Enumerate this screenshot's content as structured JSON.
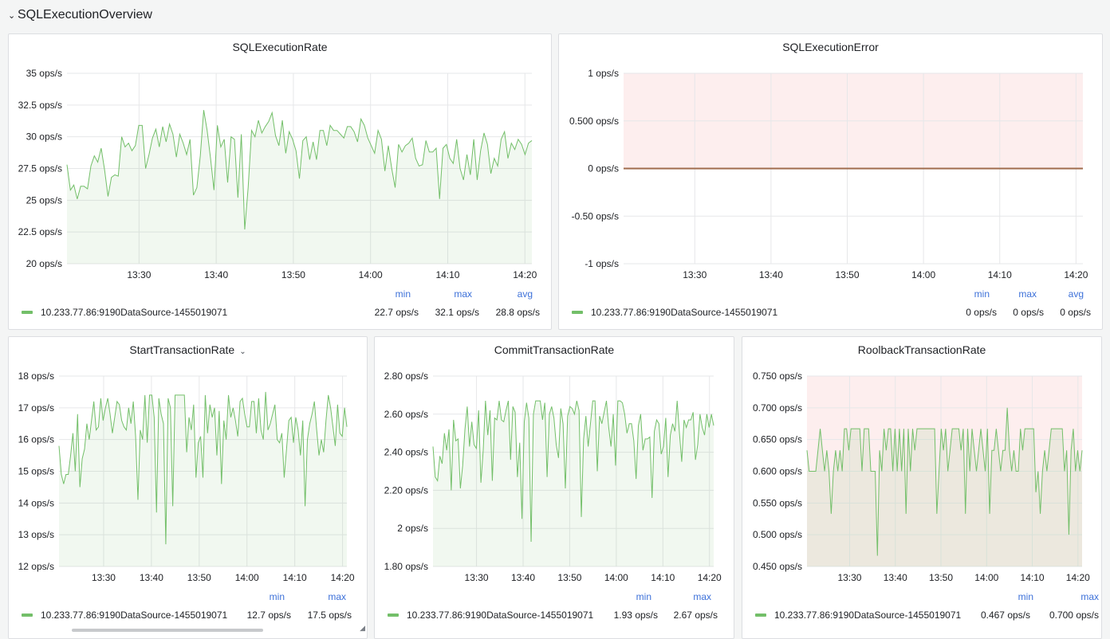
{
  "row": {
    "title": "SQLExecutionOverview",
    "chevron": "chevron-down-icon"
  },
  "legend_headers": {
    "min": "min",
    "max": "max",
    "avg": "avg"
  },
  "colors": {
    "series": "#73bf69",
    "fill": "#eef5ec",
    "threshold": "#fdeeee",
    "error_line": "#a06b4c",
    "header": "#3d71d9",
    "grid": "#e6e7e9"
  },
  "panels": [
    {
      "id": "sqlexecutionrate",
      "title": "SQLExecutionRate",
      "has_menu": false,
      "legend_series": "10.233.77.86:9190DataSource-1455019071",
      "stats": {
        "min": "22.7 ops/s",
        "max": "32.1 ops/s",
        "avg": "28.8 ops/s"
      },
      "chart_data": {
        "type": "line",
        "ylim": [
          20,
          35
        ],
        "yticks": [
          "35 ops/s",
          "32.5 ops/s",
          "30 ops/s",
          "27.5 ops/s",
          "25 ops/s",
          "22.5 ops/s",
          "20 ops/s"
        ],
        "xticks": [
          "13:30",
          "13:40",
          "13:50",
          "14:00",
          "14:10",
          "14:20"
        ],
        "threshold_area": false,
        "series": [
          {
            "name": "10.233.77.86:9190DataSource-1455019071",
            "values": [
              27.8,
              25.8,
              26.2,
              25.1,
              26.1,
              26.1,
              25.9,
              27.7,
              28.5,
              28.0,
              29.1,
              27.4,
              25.3,
              26.8,
              27.0,
              26.9,
              30.0,
              29.2,
              29.5,
              28.9,
              29.3,
              30.9,
              30.9,
              27.5,
              28.6,
              29.9,
              30.6,
              29.2,
              30.8,
              29.6,
              31.0,
              30.2,
              28.4,
              30.2,
              29.5,
              28.6,
              29.8,
              25.4,
              26.0,
              28.5,
              32.1,
              30.5,
              28.3,
              25.8,
              30.9,
              29.2,
              29.8,
              26.4,
              30.0,
              29.8,
              25.2,
              30.2,
              22.7,
              26.0,
              30.5,
              30.0,
              31.3,
              30.3,
              30.8,
              31.2,
              31.9,
              30.1,
              29.3,
              31.3,
              28.7,
              30.4,
              29.8,
              28.9,
              26.7,
              29.7,
              30.0,
              28.2,
              29.6,
              28.2,
              30.5,
              30.5,
              29.3,
              30.9,
              30.5,
              30.5,
              30.2,
              29.9,
              30.8,
              30.8,
              30.4,
              29.6,
              31.4,
              30.9,
              29.9,
              29.3,
              28.7,
              30.5,
              29.8,
              27.3,
              29.3,
              27.5,
              26.0,
              29.4,
              28.8,
              29.3,
              29.5,
              29.9,
              28.3,
              27.7,
              27.8,
              29.7,
              28.8,
              28.8,
              29.1,
              25.1,
              29.1,
              29.4,
              28.3,
              27.9,
              29.8,
              27.5,
              26.6,
              28.6,
              27.0,
              29.8,
              26.6,
              28.9,
              30.3,
              29.4,
              27.1,
              28.3,
              27.7,
              29.8,
              30.4,
              28.3,
              29.5,
              29.0,
              29.8,
              29.4,
              28.6,
              29.5,
              29.7
            ]
          }
        ]
      }
    },
    {
      "id": "sqlexecutionerror",
      "title": "SQLExecutionError",
      "has_menu": false,
      "legend_series": "10.233.77.86:9190DataSource-1455019071",
      "stats": {
        "min": "0 ops/s",
        "max": "0 ops/s",
        "avg": "0 ops/s"
      },
      "chart_data": {
        "type": "line",
        "ylim": [
          -1,
          1
        ],
        "yticks": [
          "1 ops/s",
          "0.500 ops/s",
          "0 ops/s",
          "-0.50 ops/s",
          "-1 ops/s"
        ],
        "xticks": [
          "13:30",
          "13:40",
          "13:50",
          "14:00",
          "14:10",
          "14:20"
        ],
        "threshold_area": true,
        "threshold_from": 0,
        "constant_zero": true,
        "series": [
          {
            "name": "10.233.77.86:9190DataSource-1455019071",
            "values": [
              0,
              0
            ]
          }
        ]
      }
    },
    {
      "id": "starttransactionrate",
      "title": "StartTransactionRate",
      "has_menu": true,
      "legend_series": "10.233.77.86:9190DataSource-1455019071",
      "stats": {
        "min": "12.7 ops/s",
        "max": "17.5 ops/s"
      },
      "chart_data": {
        "type": "line",
        "ylim": [
          12,
          18
        ],
        "yticks": [
          "18 ops/s",
          "17 ops/s",
          "16 ops/s",
          "15 ops/s",
          "14 ops/s",
          "13 ops/s",
          "12 ops/s"
        ],
        "xticks": [
          "13:30",
          "13:40",
          "13:50",
          "14:00",
          "14:10",
          "14:20"
        ],
        "threshold_area": false,
        "series": [
          {
            "name": "10.233.77.86:9190DataSource-1455019071",
            "values": [
              15.8,
              14.9,
              14.6,
              14.9,
              14.9,
              15.5,
              16.2,
              15.0,
              16.8,
              14.5,
              15.4,
              15.7,
              16.5,
              16.0,
              16.6,
              17.2,
              16.3,
              16.4,
              17.3,
              16.6,
              17.0,
              17.3,
              16.8,
              16.2,
              16.7,
              17.2,
              17.1,
              16.6,
              16.4,
              16.3,
              17.0,
              16.5,
              17.2,
              16.1,
              14.1,
              16.3,
              16.0,
              17.4,
              15.9,
              17.4,
              17.4,
              16.7,
              13.7,
              17.3,
              16.8,
              16.5,
              12.7,
              17.3,
              17.0,
              13.9,
              17.4,
              17.4,
              17.4,
              17.4,
              17.4,
              15.6,
              16.7,
              16.3,
              17.1,
              14.8,
              15.9,
              16.1,
              14.8,
              17.4,
              16.2,
              17.1,
              16.7,
              17.0,
              15.5,
              16.9,
              14.6,
              16.6,
              16.0,
              17.4,
              16.7,
              17.0,
              16.6,
              16.1,
              17.2,
              17.3,
              16.8,
              16.4,
              16.4,
              17.2,
              17.2,
              16.2,
              17.3,
              16.3,
              16.0,
              17.5,
              16.3,
              16.5,
              16.8,
              17.1,
              16.0,
              15.9,
              16.2,
              14.8,
              15.7,
              16.6,
              16.7,
              15.9,
              16.7,
              16.3,
              15.5,
              16.6,
              13.9,
              16.0,
              16.5,
              16.8,
              17.2,
              16.3,
              15.5,
              16.0,
              15.6,
              16.6,
              17.4,
              17.0,
              16.4,
              15.8,
              17.1,
              16.2,
              16.1,
              17.0,
              16.4
            ]
          }
        ]
      }
    },
    {
      "id": "committransactionrate",
      "title": "CommitTransactionRate",
      "has_menu": false,
      "legend_series": "10.233.77.86:9190DataSource-1455019071",
      "stats": {
        "min": "1.93 ops/s",
        "max": "2.67 ops/s"
      },
      "chart_data": {
        "type": "line",
        "ylim": [
          1.8,
          2.8
        ],
        "yticks": [
          "2.80 ops/s",
          "2.60 ops/s",
          "2.40 ops/s",
          "2.20 ops/s",
          "2 ops/s",
          "1.80 ops/s"
        ],
        "xticks": [
          "13:30",
          "13:40",
          "13:50",
          "14:00",
          "14:10",
          "14:20"
        ],
        "threshold_area": false,
        "series": [
          {
            "name": "10.233.77.86:9190DataSource-1455019071",
            "values": [
              2.43,
              2.27,
              2.25,
              2.38,
              2.34,
              2.5,
              2.41,
              2.52,
              2.2,
              2.57,
              2.46,
              2.47,
              2.21,
              2.33,
              2.52,
              2.64,
              2.43,
              2.56,
              2.44,
              2.42,
              2.62,
              2.24,
              2.41,
              2.67,
              2.49,
              2.62,
              2.25,
              2.58,
              2.57,
              2.67,
              2.57,
              2.56,
              2.62,
              2.67,
              2.36,
              2.64,
              2.61,
              2.27,
              2.45,
              2.05,
              2.56,
              2.66,
              2.58,
              1.93,
              2.6,
              2.67,
              2.67,
              2.67,
              2.57,
              2.66,
              2.27,
              2.6,
              2.64,
              2.58,
              2.44,
              2.37,
              2.63,
              2.55,
              2.21,
              2.59,
              2.64,
              2.63,
              2.6,
              2.67,
              2.62,
              2.06,
              2.47,
              2.59,
              2.43,
              2.55,
              2.67,
              2.67,
              2.3,
              2.59,
              2.55,
              2.61,
              2.67,
              2.53,
              2.43,
              2.6,
              2.33,
              2.67,
              2.67,
              2.66,
              2.6,
              2.5,
              2.55,
              2.55,
              2.46,
              2.26,
              2.54,
              2.6,
              2.41,
              2.47,
              2.47,
              2.48,
              2.16,
              2.51,
              2.57,
              2.55,
              2.39,
              2.43,
              2.58,
              2.27,
              2.49,
              2.55,
              2.51,
              2.67,
              2.5,
              2.35,
              2.57,
              2.53,
              2.57,
              2.57,
              2.61,
              2.36,
              2.44,
              2.6,
              2.53,
              2.49,
              2.6,
              2.53,
              2.6,
              2.54
            ]
          }
        ]
      }
    },
    {
      "id": "rollbacktransactionrate",
      "title": "RoolbackTransactionRate",
      "has_menu": false,
      "legend_series": "10.233.77.86:9190DataSource-1455019071",
      "stats": {
        "min": "0.467 ops/s",
        "max": "0.700 ops/s"
      },
      "chart_data": {
        "type": "line",
        "ylim": [
          0.45,
          0.75
        ],
        "yticks": [
          "0.750 ops/s",
          "0.700 ops/s",
          "0.650 ops/s",
          "0.600 ops/s",
          "0.550 ops/s",
          "0.500 ops/s",
          "0.450 ops/s"
        ],
        "xticks": [
          "13:30",
          "13:40",
          "13:50",
          "14:00",
          "14:10",
          "14:20"
        ],
        "threshold_area": true,
        "threshold_from": 0.45,
        "series": [
          {
            "name": "10.233.77.86:9190DataSource-1455019071",
            "values": [
              0.633,
              0.6,
              0.6,
              0.6,
              0.6,
              0.633,
              0.667,
              0.633,
              0.6,
              0.633,
              0.6,
              0.533,
              0.6,
              0.633,
              0.6,
              0.633,
              0.6,
              0.667,
              0.667,
              0.633,
              0.667,
              0.667,
              0.667,
              0.667,
              0.667,
              0.6,
              0.667,
              0.667,
              0.667,
              0.6,
              0.6,
              0.6,
              0.467,
              0.633,
              0.6,
              0.667,
              0.633,
              0.667,
              0.667,
              0.6,
              0.667,
              0.6,
              0.667,
              0.6,
              0.667,
              0.533,
              0.667,
              0.6,
              0.667,
              0.633,
              0.667,
              0.667,
              0.667,
              0.667,
              0.667,
              0.667,
              0.667,
              0.667,
              0.667,
              0.533,
              0.6,
              0.667,
              0.633,
              0.667,
              0.6,
              0.633,
              0.667,
              0.667,
              0.667,
              0.667,
              0.633,
              0.667,
              0.533,
              0.667,
              0.6,
              0.667,
              0.633,
              0.6,
              0.633,
              0.667,
              0.633,
              0.6,
              0.667,
              0.533,
              0.633,
              0.633,
              0.667,
              0.633,
              0.6,
              0.633,
              0.633,
              0.7,
              0.633,
              0.6,
              0.633,
              0.6,
              0.6,
              0.667,
              0.633,
              0.667,
              0.667,
              0.667,
              0.667,
              0.667,
              0.567,
              0.6,
              0.533,
              0.6,
              0.633,
              0.6,
              0.633,
              0.667,
              0.667,
              0.667,
              0.667,
              0.667,
              0.667,
              0.6,
              0.633,
              0.5,
              0.633,
              0.667,
              0.6,
              0.633,
              0.6,
              0.633
            ]
          }
        ]
      }
    }
  ]
}
